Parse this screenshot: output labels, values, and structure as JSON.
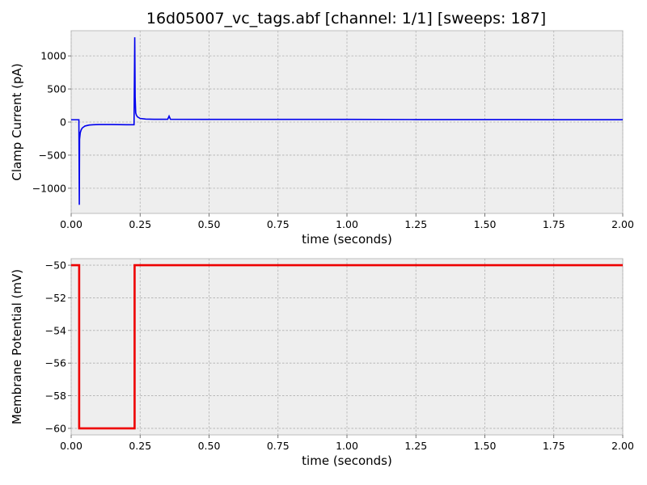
{
  "colors": {
    "background": "#ffffff",
    "axes_face": "#eeeeee",
    "grid": "#b0b0b0",
    "current_trace": "#0000ee",
    "potential_trace": "#ee0000"
  },
  "chart_data": [
    {
      "type": "line",
      "title": "16d05007_vc_tags.abf [channel: 1/1] [sweeps: 187]",
      "xlabel": "time (seconds)",
      "ylabel": "Clamp Current (pA)",
      "xlim": [
        0,
        2.0
      ],
      "ylim": [
        -1380,
        1380
      ],
      "xticks": [
        0,
        0.25,
        0.5,
        0.75,
        1.0,
        1.25,
        1.5,
        1.75,
        2.0
      ],
      "xtick_labels": [
        "0.00",
        "0.25",
        "0.50",
        "0.75",
        "1.00",
        "1.25",
        "1.50",
        "1.75",
        "2.00"
      ],
      "yticks": [
        -1000,
        -500,
        0,
        500,
        1000
      ],
      "ytick_labels": [
        "−1000",
        "−500",
        "0",
        "500",
        "1000"
      ],
      "grid": true,
      "series": [
        {
          "color": "#0000ee",
          "x": [
            0,
            0.028,
            0.0295,
            0.0305,
            0.033,
            0.036,
            0.04,
            0.05,
            0.065,
            0.08,
            0.1,
            0.15,
            0.2,
            0.228,
            0.2305,
            0.232,
            0.234,
            0.236,
            0.24,
            0.25,
            0.27,
            0.3,
            0.35,
            0.355,
            0.36,
            0.5,
            0.75,
            1.0,
            1.25,
            1.5,
            1.75,
            2.0
          ],
          "y": [
            35,
            35,
            -1250,
            -260,
            -160,
            -120,
            -90,
            -60,
            -45,
            -40,
            -38,
            -38,
            -40,
            -40,
            1280,
            380,
            140,
            110,
            80,
            55,
            45,
            42,
            42,
            90,
            42,
            40,
            40,
            40,
            38,
            38,
            36,
            36
          ]
        }
      ]
    },
    {
      "type": "line",
      "title": "",
      "xlabel": "time (seconds)",
      "ylabel": "Membrane Potential (mV)",
      "xlim": [
        0,
        2.0
      ],
      "ylim": [
        -60.4,
        -49.6
      ],
      "xticks": [
        0,
        0.25,
        0.5,
        0.75,
        1.0,
        1.25,
        1.5,
        1.75,
        2.0
      ],
      "xtick_labels": [
        "0.00",
        "0.25",
        "0.50",
        "0.75",
        "1.00",
        "1.25",
        "1.50",
        "1.75",
        "2.00"
      ],
      "yticks": [
        -60,
        -58,
        -56,
        -54,
        -52,
        -50
      ],
      "ytick_labels": [
        "−60",
        "−58",
        "−56",
        "−54",
        "−52",
        "−50"
      ],
      "grid": true,
      "series": [
        {
          "color": "#ee0000",
          "x": [
            0,
            0.029,
            0.029,
            0.23,
            0.23,
            2.0
          ],
          "y": [
            -50,
            -50,
            -60,
            -60,
            -50,
            -50
          ]
        }
      ]
    }
  ]
}
